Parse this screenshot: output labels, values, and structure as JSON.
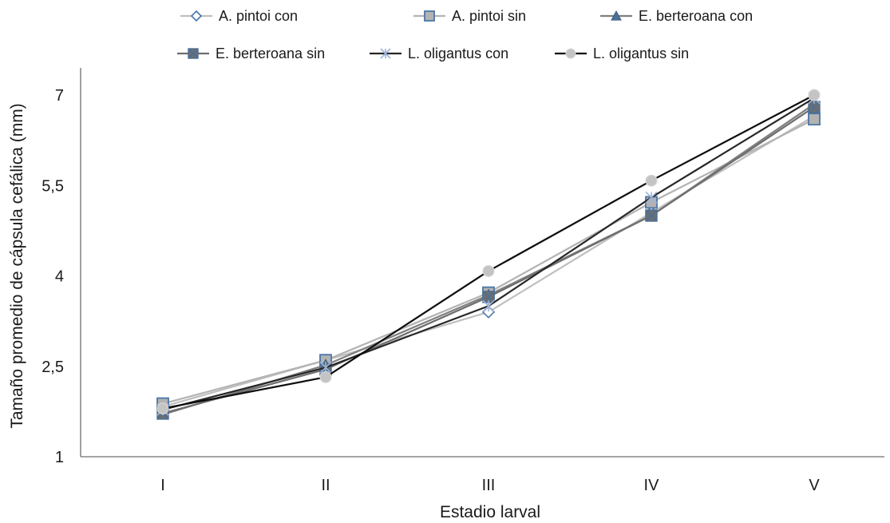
{
  "chart_data": {
    "type": "line",
    "title": "",
    "xlabel": "Estadio larval",
    "ylabel": "Tamaño promedio  de cápsula cefálica (mm)",
    "categories": [
      "I",
      "II",
      "III",
      "IV",
      "V"
    ],
    "y_ticks": [
      "1",
      "2,5",
      "4",
      "5,5",
      "7"
    ],
    "ylim": [
      1,
      7.5
    ],
    "grid": false,
    "legend_position": "top",
    "series": [
      {
        "name": "A. pintoi con",
        "values": [
          1.83,
          2.6,
          3.4,
          5.05,
          6.65
        ],
        "color": "#bfbfbf",
        "marker": "diamond-open"
      },
      {
        "name": "A. pintoi sin",
        "values": [
          1.88,
          2.6,
          3.72,
          5.22,
          6.6
        ],
        "color": "#b3b3b3",
        "marker": "square"
      },
      {
        "name": "E. berteroana con",
        "values": [
          1.7,
          2.52,
          3.68,
          5.0,
          6.85
        ],
        "color": "#7f7f7f",
        "marker": "triangle"
      },
      {
        "name": "E. berteroana sin",
        "values": [
          1.72,
          2.45,
          3.65,
          5.0,
          6.8
        ],
        "color": "#6e6e6e",
        "marker": "x-box"
      },
      {
        "name": "L. oligantus con",
        "values": [
          1.78,
          2.48,
          3.5,
          5.3,
          6.95
        ],
        "color": "#262626",
        "marker": "asterisk"
      },
      {
        "name": "L. oligantus sin",
        "values": [
          1.8,
          2.32,
          4.08,
          5.58,
          7.0
        ],
        "color": "#0d0d0d",
        "marker": "circle"
      }
    ]
  }
}
